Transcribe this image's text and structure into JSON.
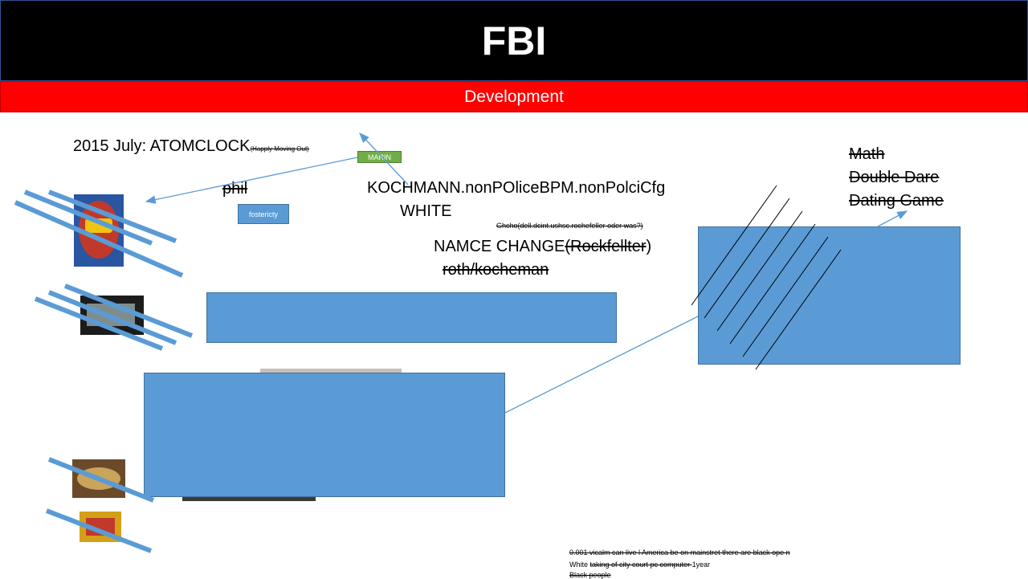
{
  "header": {
    "title": "FBI",
    "subtitle": "Development"
  },
  "timeline": {
    "date": "2015 July: ATOMCLOCK",
    "note": "(Happly Moving Out)"
  },
  "labels": {
    "phil": "phil",
    "fostericty": "fostericty",
    "marin": "MARIN",
    "kochmann": "KOCHMANN.nonPOliceBPM.nonPolciCfg",
    "white": "WHITE",
    "small_note": "Ghcho(dell.dcint.ushsc.rochefeller oder was?)",
    "name_change": "NAMCE CHANGE",
    "name_change_struck": "(Rockfellter",
    "name_change_close": ")",
    "roth": "roth/kocheman"
  },
  "game_shows": [
    "Math",
    "Double Dare",
    "Dating Game"
  ],
  "footer_notes": {
    "line1": "0.001 vicalm can live l America be on mainstret there are black ope n",
    "line2_prefix": "White ",
    "line2_struck": "taking of city court pc computer ",
    "line2_suffix": "1year",
    "line3": "Black people"
  },
  "colors": {
    "header_bg": "#000000",
    "subbar_bg": "#ff0000",
    "box_fill": "#5b9bd5",
    "box_border": "#41719c",
    "marin_fill": "#70ad47"
  }
}
